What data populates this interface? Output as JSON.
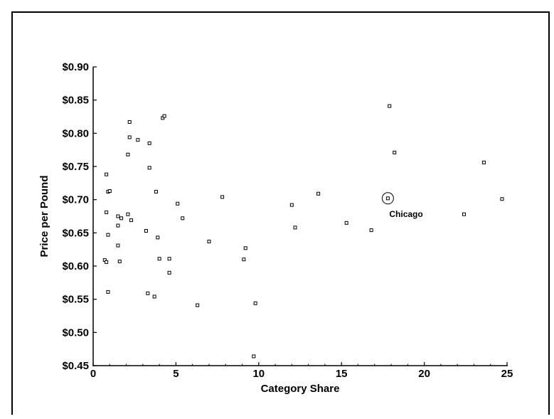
{
  "chart_data": {
    "type": "scatter",
    "title": "",
    "xlabel": "Category Share",
    "ylabel": "Price per Pound",
    "xlim": [
      0,
      25
    ],
    "ylim": [
      0.45,
      0.9
    ],
    "x_ticks": [
      0,
      5,
      10,
      15,
      20,
      25
    ],
    "x_tick_labels": [
      "0",
      "5",
      "10",
      "15",
      "20",
      "25"
    ],
    "y_ticks": [
      0.45,
      0.5,
      0.55,
      0.6,
      0.65,
      0.7,
      0.75,
      0.8,
      0.85,
      0.9
    ],
    "y_tick_labels": [
      "$0.45",
      "$0.50",
      "$0.55",
      "$0.60",
      "$0.65",
      "$0.70",
      "$0.75",
      "$0.80",
      "$0.85",
      "$0.90"
    ],
    "grid": false,
    "legend": "none",
    "points": [
      {
        "x": 0.7,
        "y": 0.609
      },
      {
        "x": 0.8,
        "y": 0.606
      },
      {
        "x": 0.8,
        "y": 0.738
      },
      {
        "x": 0.9,
        "y": 0.712
      },
      {
        "x": 1.0,
        "y": 0.713
      },
      {
        "x": 0.8,
        "y": 0.681
      },
      {
        "x": 0.9,
        "y": 0.647
      },
      {
        "x": 0.9,
        "y": 0.561
      },
      {
        "x": 1.5,
        "y": 0.675
      },
      {
        "x": 1.5,
        "y": 0.631
      },
      {
        "x": 1.5,
        "y": 0.661
      },
      {
        "x": 1.6,
        "y": 0.607
      },
      {
        "x": 1.7,
        "y": 0.672
      },
      {
        "x": 2.1,
        "y": 0.768
      },
      {
        "x": 2.1,
        "y": 0.678
      },
      {
        "x": 2.2,
        "y": 0.817
      },
      {
        "x": 2.2,
        "y": 0.794
      },
      {
        "x": 2.3,
        "y": 0.669
      },
      {
        "x": 2.7,
        "y": 0.79
      },
      {
        "x": 3.2,
        "y": 0.653
      },
      {
        "x": 3.3,
        "y": 0.559
      },
      {
        "x": 3.4,
        "y": 0.785
      },
      {
        "x": 3.4,
        "y": 0.748
      },
      {
        "x": 3.7,
        "y": 0.554
      },
      {
        "x": 3.8,
        "y": 0.712
      },
      {
        "x": 3.9,
        "y": 0.643
      },
      {
        "x": 4.0,
        "y": 0.611
      },
      {
        "x": 4.2,
        "y": 0.823
      },
      {
        "x": 4.3,
        "y": 0.826
      },
      {
        "x": 4.6,
        "y": 0.611
      },
      {
        "x": 4.6,
        "y": 0.59
      },
      {
        "x": 5.1,
        "y": 0.694
      },
      {
        "x": 5.4,
        "y": 0.672
      },
      {
        "x": 6.3,
        "y": 0.541
      },
      {
        "x": 7.0,
        "y": 0.637
      },
      {
        "x": 7.8,
        "y": 0.704
      },
      {
        "x": 9.1,
        "y": 0.61
      },
      {
        "x": 9.2,
        "y": 0.627
      },
      {
        "x": 9.7,
        "y": 0.464
      },
      {
        "x": 9.8,
        "y": 0.544
      },
      {
        "x": 12.0,
        "y": 0.692
      },
      {
        "x": 12.2,
        "y": 0.658
      },
      {
        "x": 13.6,
        "y": 0.709
      },
      {
        "x": 15.3,
        "y": 0.665
      },
      {
        "x": 16.8,
        "y": 0.654
      },
      {
        "x": 17.8,
        "y": 0.702
      },
      {
        "x": 17.9,
        "y": 0.841
      },
      {
        "x": 18.2,
        "y": 0.771
      },
      {
        "x": 22.4,
        "y": 0.678
      },
      {
        "x": 23.6,
        "y": 0.756
      },
      {
        "x": 24.7,
        "y": 0.701
      }
    ],
    "annotations": [
      {
        "text": "Chicago",
        "x": 17.8,
        "y": 0.702,
        "marker": "circle"
      }
    ]
  }
}
